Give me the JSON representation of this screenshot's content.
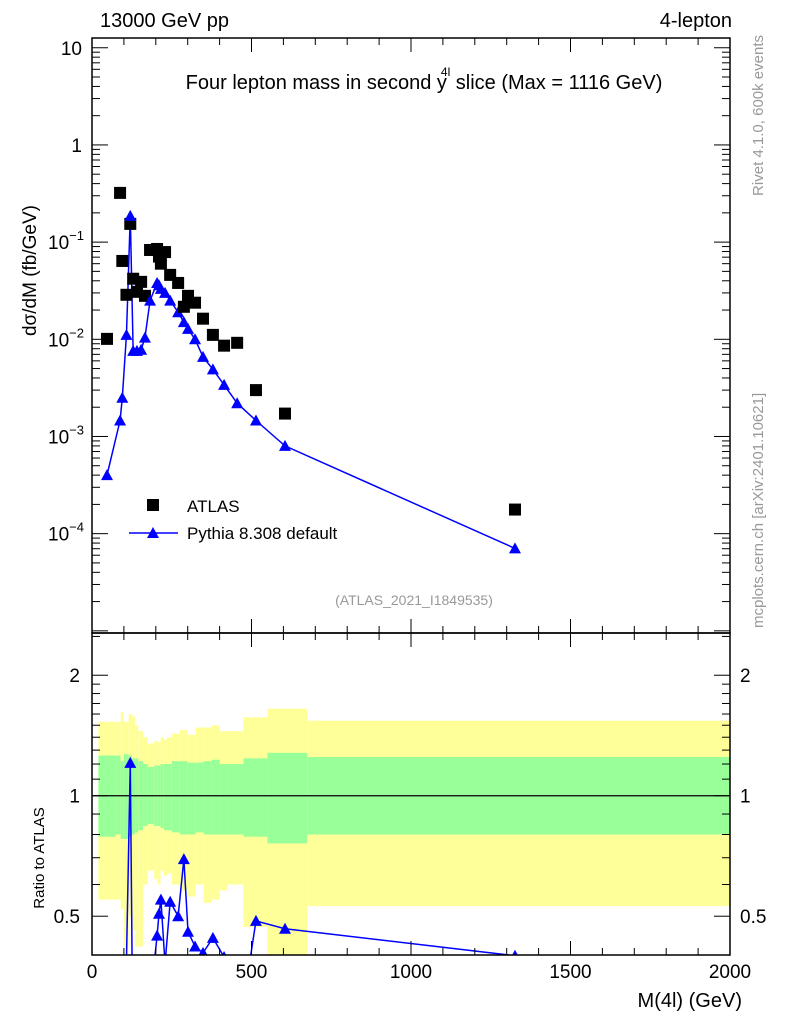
{
  "header": {
    "left": "13000 GeV pp",
    "right": "4-lepton"
  },
  "side": {
    "rivet": "Rivet 4.1.0,  600k events",
    "mcplots": "mcplots.cern.ch [arXiv:2401.10621]"
  },
  "analysis_id": "(ATLAS_2021_I1849535)",
  "colors": {
    "data": "#000000",
    "mc": "#0000ff",
    "band_inner": "#99ff99",
    "band_outer": "#ffff99"
  },
  "chart_data": [
    {
      "type": "scatter",
      "title_parts": {
        "pre": "Four lepton mass in second ",
        "var": "y",
        "sup": "4l",
        "post": " slice (Max = 1116 GeV)"
      },
      "ylabel": "dσ/dM (fb/GeV)",
      "xlim": [
        0,
        2000
      ],
      "ylim": [
        9.5e-06,
        12.6
      ],
      "yscale": "log",
      "yticks": [
        {
          "v": 10,
          "label": "10"
        },
        {
          "v": 1,
          "label": "1"
        },
        {
          "v": 0.1,
          "base": "10",
          "exp": "−1"
        },
        {
          "v": 0.01,
          "base": "10",
          "exp": "−2"
        },
        {
          "v": 0.001,
          "base": "10",
          "exp": "−3"
        },
        {
          "v": 0.0001,
          "base": "10",
          "exp": "−4"
        }
      ],
      "legend": {
        "placement": "bottom-left",
        "entries": [
          "ATLAS",
          "Pythia 8.308 default"
        ]
      },
      "x": [
        47,
        88,
        95,
        108,
        120,
        129,
        141,
        154,
        166,
        182,
        204,
        210,
        216,
        229,
        245,
        270,
        288,
        301,
        323,
        348,
        379,
        414,
        455,
        514,
        605,
        1326
      ],
      "series": [
        {
          "name": "ATLAS",
          "marker": "square",
          "values": [
            0.0101,
            0.321,
            0.064,
            0.0287,
            0.154,
            0.042,
            0.0308,
            0.039,
            0.028,
            0.083,
            0.085,
            0.071,
            0.06,
            0.079,
            0.046,
            0.038,
            0.0216,
            0.028,
            0.0238,
            0.0163,
            0.0111,
            0.0086,
            0.0092,
            0.003,
            0.00172,
            0.000177
          ]
        },
        {
          "name": "Pythia 8.308 default",
          "marker": "triangle",
          "values": [
            0.0004,
            0.00146,
            0.0025,
            0.0111,
            0.186,
            0.0076,
            0.0076,
            0.0078,
            0.0104,
            0.025,
            0.038,
            0.036,
            0.033,
            0.03,
            0.025,
            0.019,
            0.015,
            0.0128,
            0.01,
            0.0066,
            0.0049,
            0.0034,
            0.0022,
            0.00146,
            0.0008,
            7.05e-05
          ]
        }
      ]
    },
    {
      "type": "line",
      "ylabel": "Ratio to ATLAS",
      "xlabel": "M(4l) (GeV)",
      "xlim": [
        0,
        2000
      ],
      "ylim": [
        0.4,
        2.55
      ],
      "yscale": "log",
      "xticks": [
        0,
        500,
        1000,
        1500,
        2000
      ],
      "xtick_labels": [
        "0",
        "500",
        "1000",
        "1500",
        "2000"
      ],
      "yticks": [
        2,
        1,
        0.5
      ],
      "ytick_labels": [
        "2",
        "1",
        "0.5"
      ],
      "bin_edges": [
        20,
        75,
        90,
        100,
        115,
        125,
        135,
        145,
        160,
        175,
        195,
        205,
        215,
        225,
        235,
        250,
        275,
        300,
        325,
        350,
        375,
        400,
        425,
        475,
        550,
        675,
        2000
      ],
      "band_inner_hi": [
        1.26,
        1.26,
        1.22,
        1.27,
        1.26,
        1.24,
        1.24,
        1.22,
        1.2,
        1.18,
        1.19,
        1.19,
        1.2,
        1.2,
        1.2,
        1.22,
        1.22,
        1.21,
        1.21,
        1.22,
        1.23,
        1.2,
        1.2,
        1.24,
        1.28,
        1.25
      ],
      "band_inner_lo": [
        0.79,
        0.8,
        0.78,
        0.78,
        0.79,
        0.8,
        0.81,
        0.82,
        0.84,
        0.85,
        0.84,
        0.84,
        0.83,
        0.82,
        0.82,
        0.81,
        0.8,
        0.8,
        0.81,
        0.8,
        0.8,
        0.8,
        0.8,
        0.79,
        0.76,
        0.8
      ],
      "band_outer_hi": [
        1.53,
        1.53,
        1.62,
        1.53,
        1.6,
        1.58,
        1.5,
        1.45,
        1.4,
        1.35,
        1.37,
        1.36,
        1.4,
        1.38,
        1.4,
        1.43,
        1.46,
        1.42,
        1.48,
        1.48,
        1.5,
        1.45,
        1.45,
        1.57,
        1.65,
        1.54
      ],
      "band_outer_lo": [
        0.55,
        0.55,
        0.52,
        0.42,
        0.5,
        0.46,
        0.42,
        0.42,
        0.6,
        0.65,
        0.62,
        0.6,
        0.65,
        0.63,
        0.64,
        0.6,
        0.58,
        0.56,
        0.6,
        0.54,
        0.55,
        0.58,
        0.6,
        0.47,
        0.4,
        0.53
      ]
    }
  ]
}
